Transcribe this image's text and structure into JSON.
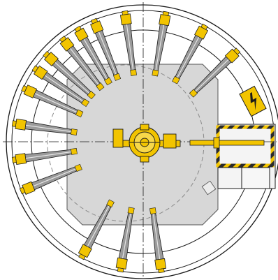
{
  "drawing": {
    "colors": {
      "background": "#ffffff",
      "line": "#1a1a1a",
      "platform_fill": "#d7d7d7",
      "arm_fill": "#9a9a9a",
      "accent_yellow": "#f2c400",
      "hazard_dark": "#2a2a2a"
    },
    "arm_count": 16,
    "icons": [
      "high-voltage-icon"
    ]
  }
}
